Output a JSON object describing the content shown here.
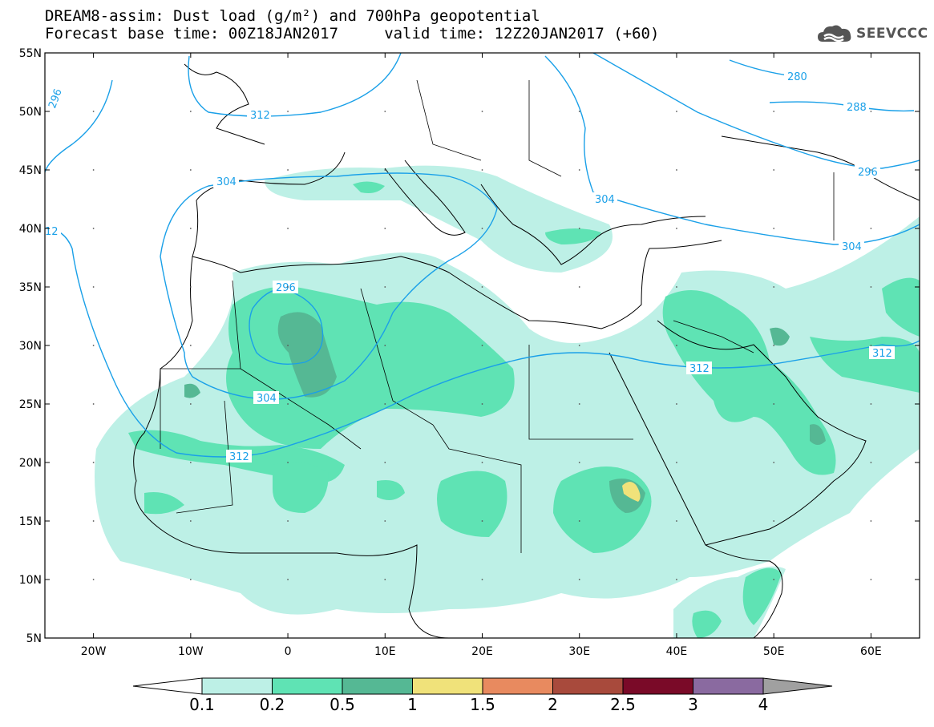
{
  "header": {
    "title_line1": "DREAM8-assim: Dust load (g/m²) and 700hPa geopotential",
    "title_line2": "Forecast base time: 00Z18JAN2017     valid time: 12Z20JAN2017 (+60)"
  },
  "logo": {
    "text": "SEEVCCC",
    "icon": "cloud-icon"
  },
  "map": {
    "lat_labels": [
      "55N",
      "50N",
      "45N",
      "40N",
      "35N",
      "30N",
      "25N",
      "20N",
      "15N",
      "10N",
      "5N"
    ],
    "lat_values": [
      55,
      50,
      45,
      40,
      35,
      30,
      25,
      20,
      15,
      10,
      5
    ],
    "lon_labels": [
      "20W",
      "10W",
      "0",
      "10E",
      "20E",
      "30E",
      "40E",
      "50E",
      "60E"
    ],
    "lon_values": [
      -20,
      -10,
      0,
      10,
      20,
      30,
      40,
      50,
      60
    ],
    "lon_range": [
      -25,
      65
    ],
    "lat_range": [
      5,
      55
    ],
    "contour_labels": [
      "312",
      "296",
      "304",
      "280",
      "288",
      "296",
      "304",
      "304",
      "12",
      "296",
      "304",
      "312",
      "312",
      "312"
    ]
  },
  "colorbar": {
    "ticks": [
      "0.1",
      "0.2",
      "0.5",
      "1",
      "1.5",
      "2",
      "2.5",
      "3",
      "4"
    ],
    "colors": [
      "#bdf0e6",
      "#5fe3b4",
      "#55b894",
      "#f0e27a",
      "#e88a5f",
      "#a84a3c",
      "#7a0a28",
      "#8a6aa0"
    ],
    "under_color": "#ffffff",
    "over_color": "#a0a0a0"
  },
  "colors": {
    "dust_low": "#bdf0e6",
    "dust_mid": "#5fe3b4",
    "dust_high": "#55b894",
    "dust_peak": "#f0e27a",
    "contour": "#1aa0e8"
  }
}
